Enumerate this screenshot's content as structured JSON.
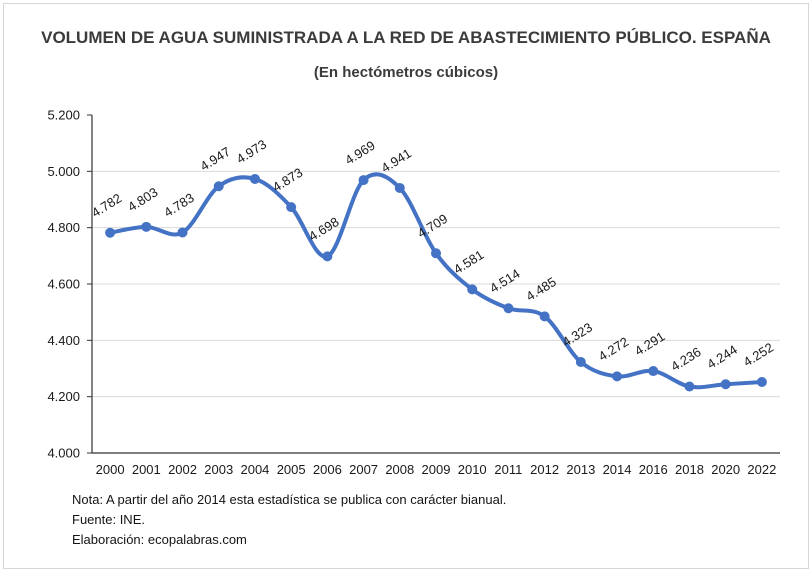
{
  "figure": {
    "title": "VOLUMEN DE AGUA SUMINISTRADA A LA RED DE ABASTECIMIENTO PÚBLICO. ESPAÑA",
    "subtitle": "(En hectómetros cúbicos)"
  },
  "notes": {
    "line1": "Nota: A partir del año 2014 esta estadística se publica con carácter bianual.",
    "line2": "Fuente: INE.",
    "line3": "Elaboración: ecopalabras.com"
  },
  "chart_data": {
    "type": "line",
    "title": "VOLUMEN DE AGUA SUMINISTRADA A LA RED DE ABASTECIMIENTO PÚBLICO. ESPAÑA",
    "subtitle": "(En hectómetros cúbicos)",
    "categories": [
      "2000",
      "2001",
      "2002",
      "2003",
      "2004",
      "2005",
      "2006",
      "2007",
      "2008",
      "2009",
      "2010",
      "2011",
      "2012",
      "2013",
      "2014",
      "2016",
      "2018",
      "2020",
      "2022"
    ],
    "values": [
      4782,
      4803,
      4783,
      4947,
      4973,
      4873,
      4698,
      4969,
      4941,
      4709,
      4581,
      4514,
      4485,
      4323,
      4272,
      4291,
      4236,
      4244,
      4252
    ],
    "data_labels": [
      "4.782",
      "4.803",
      "4.783",
      "4.947",
      "4.973",
      "4.873",
      "4.698",
      "4.969",
      "4.941",
      "4.709",
      "4.581",
      "4.514",
      "4.485",
      "4.323",
      "4.272",
      "4.291",
      "4.236",
      "4.244",
      "4.252"
    ],
    "xlabel": "",
    "ylabel": "",
    "ylim": [
      4000,
      5200
    ],
    "yticks": {
      "values": [
        5200,
        5000,
        4800,
        4600,
        4400,
        4200,
        4000
      ],
      "labels": [
        "5.200",
        "5.000",
        "4.800",
        "4.600",
        "4.400",
        "4.200",
        "4.000"
      ]
    },
    "grid": "horizontal",
    "legend": "none",
    "smooth": true,
    "line_color": "#4472C4",
    "marker_color": "#4472C4",
    "grid_color": "#d9d9d9",
    "axis_color": "#333333",
    "label_color": "#1a1a1a"
  }
}
